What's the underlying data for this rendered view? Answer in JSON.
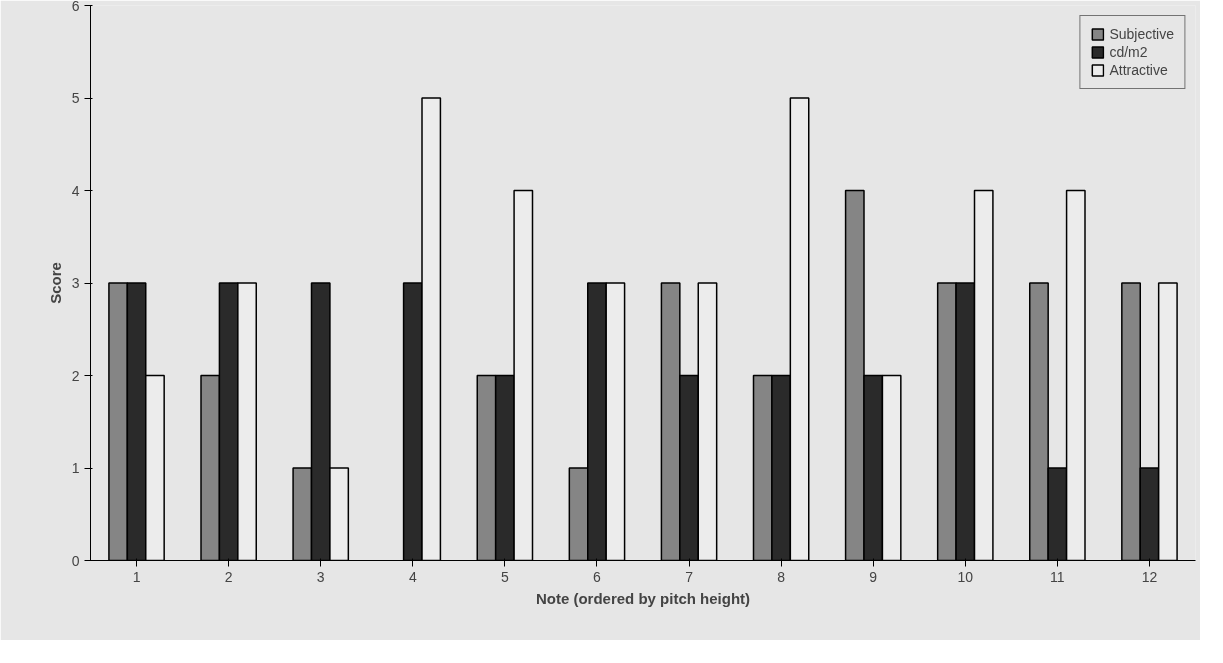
{
  "chart_data": {
    "type": "bar",
    "xlabel": "Note (ordered by pitch height)",
    "ylabel": "Score",
    "categories": [
      "1",
      "2",
      "3",
      "4",
      "5",
      "6",
      "7",
      "8",
      "9",
      "10",
      "11",
      "12"
    ],
    "series": [
      {
        "name": "Subjective",
        "color": "#858585",
        "values": [
          3,
          2,
          1,
          0,
          2,
          1,
          3,
          2,
          4,
          3,
          3,
          3
        ]
      },
      {
        "name": "cd/m2",
        "color": "#2a2a2a",
        "values": [
          3,
          3,
          3,
          3,
          2,
          3,
          2,
          2,
          2,
          3,
          1,
          1
        ]
      },
      {
        "name": "Attractive",
        "color": "#ececec",
        "values": [
          2,
          3,
          1,
          5,
          4,
          3,
          3,
          5,
          2,
          4,
          4,
          3
        ]
      }
    ],
    "ylim": [
      0,
      6
    ],
    "yticks": [
      0,
      1,
      2,
      3,
      4,
      5,
      6
    ],
    "legend": "top right"
  }
}
